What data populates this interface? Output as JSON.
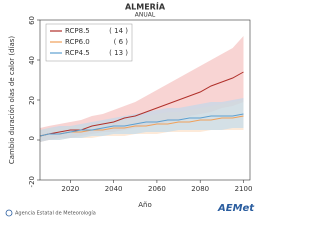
{
  "chart_data": {
    "type": "line",
    "title": "ALMERÍA",
    "subtitle": "ANUAL",
    "y_label": "Cambio duración olas de calor (días)",
    "x_label": "Año",
    "x": [
      2006,
      2010,
      2015,
      2020,
      2025,
      2030,
      2035,
      2040,
      2045,
      2050,
      2055,
      2060,
      2065,
      2070,
      2075,
      2080,
      2085,
      2090,
      2095,
      2100
    ],
    "xlim": [
      2006,
      2103
    ],
    "xticks": [
      2020,
      2040,
      2060,
      2080,
      2100
    ],
    "ylim": [
      -20,
      60
    ],
    "yticks": [
      -20,
      0,
      20,
      40,
      60
    ],
    "series": [
      {
        "name": "RCP8.5",
        "count": "( 14 )",
        "color": "#b0302a",
        "band_color": "#f4b7b5",
        "values": [
          2,
          3,
          4,
          5,
          5,
          7,
          8,
          9,
          11,
          12,
          14,
          16,
          18,
          20,
          22,
          24,
          27,
          29,
          31,
          34
        ],
        "lower": [
          -1,
          0,
          1,
          1,
          2,
          3,
          4,
          4,
          5,
          6,
          7,
          8,
          9,
          10,
          12,
          13,
          14,
          16,
          17,
          19
        ],
        "upper": [
          6,
          7,
          8,
          9,
          10,
          12,
          13,
          15,
          17,
          19,
          22,
          25,
          28,
          31,
          34,
          37,
          40,
          43,
          46,
          52
        ]
      },
      {
        "name": "RCP6.0",
        "count": "( 6 )",
        "color": "#f0a05a",
        "band_color": "#fbdcbf",
        "values": [
          2,
          3,
          3,
          4,
          4,
          5,
          5,
          6,
          6,
          7,
          7,
          8,
          8,
          9,
          9,
          10,
          10,
          11,
          11,
          12
        ],
        "lower": [
          -1,
          0,
          0,
          1,
          1,
          1,
          2,
          2,
          2,
          3,
          3,
          3,
          4,
          4,
          4,
          4,
          5,
          5,
          5,
          5
        ],
        "upper": [
          5,
          6,
          6,
          7,
          7,
          8,
          9,
          10,
          10,
          11,
          12,
          13,
          14,
          14,
          15,
          16,
          17,
          18,
          19,
          20
        ]
      },
      {
        "name": "RCP4.5",
        "count": "( 13 )",
        "color": "#5c9fd0",
        "band_color": "#b9d9ef",
        "values": [
          2,
          3,
          3,
          4,
          5,
          5,
          6,
          7,
          7,
          8,
          9,
          9,
          10,
          10,
          11,
          11,
          12,
          12,
          12,
          13
        ],
        "lower": [
          -1,
          0,
          0,
          1,
          1,
          2,
          2,
          3,
          3,
          3,
          4,
          4,
          4,
          5,
          5,
          5,
          5,
          5,
          6,
          6
        ],
        "upper": [
          5,
          6,
          7,
          7,
          8,
          9,
          10,
          11,
          12,
          13,
          14,
          15,
          16,
          16,
          17,
          18,
          19,
          19,
          20,
          21
        ]
      }
    ]
  },
  "footer": {
    "agency": "Agencia Estatal de Meteorología",
    "logo": "AEMet"
  }
}
